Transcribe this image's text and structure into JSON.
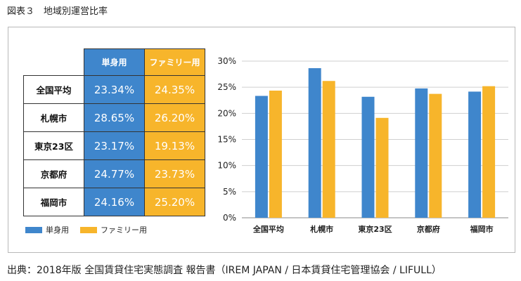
{
  "figure_title": "図表３　地域別運営比率",
  "source": "出典：2018年版 全国賃貸住宅実態調査 報告書（IREM JAPAN / 日本賃貸住宅管理協会 / LIFULL）",
  "colors": {
    "single": "#3f86cc",
    "family": "#f7b52b"
  },
  "table": {
    "headers": [
      "単身用",
      "ファミリー用"
    ],
    "rows": [
      {
        "label": "全国平均",
        "single": "23.34%",
        "family": "24.35%"
      },
      {
        "label": "札幌市",
        "single": "28.65%",
        "family": "26.20%"
      },
      {
        "label": "東京23区",
        "single": "23.17%",
        "family": "19.13%"
      },
      {
        "label": "京都府",
        "single": "24.77%",
        "family": "23.73%"
      },
      {
        "label": "福岡市",
        "single": "24.16%",
        "family": "25.20%"
      }
    ]
  },
  "legend": [
    "単身用",
    "ファミリー用"
  ],
  "chart_data": {
    "type": "bar",
    "categories": [
      "全国平均",
      "札幌市",
      "東京23区",
      "京都府",
      "福岡市"
    ],
    "series": [
      {
        "name": "単身用",
        "values": [
          23.34,
          28.65,
          23.17,
          24.77,
          24.16
        ]
      },
      {
        "name": "ファミリー用",
        "values": [
          24.35,
          26.2,
          19.13,
          23.73,
          25.2
        ]
      }
    ],
    "ylim": [
      0,
      30
    ],
    "yticks": [
      "0%",
      "5%",
      "10%",
      "15%",
      "20%",
      "25%",
      "30%"
    ],
    "grid": true,
    "legend_position": "bottom-left"
  }
}
